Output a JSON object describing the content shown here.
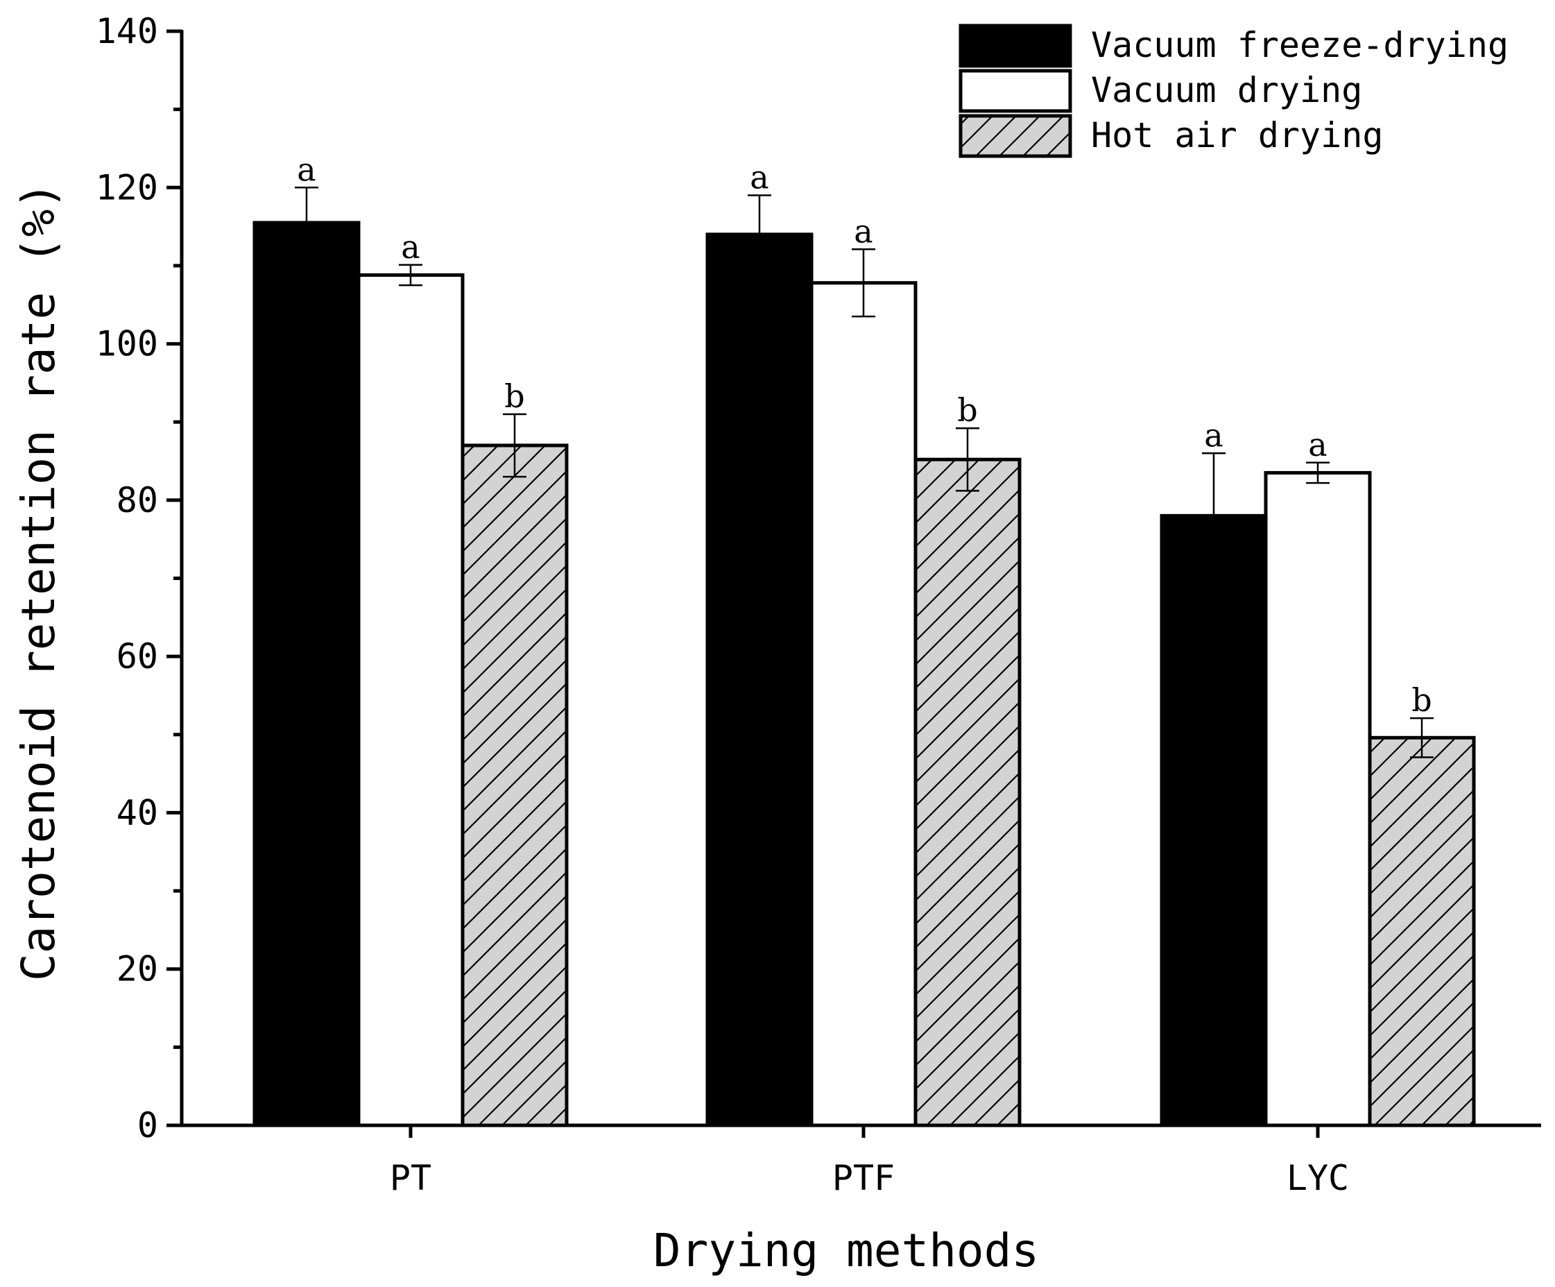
{
  "chart_data": {
    "type": "bar",
    "title": "",
    "xlabel": "Drying methods",
    "ylabel": "Carotenoid retention rate (%)",
    "ylim": [
      0,
      140
    ],
    "yticks": [
      0,
      20,
      40,
      60,
      80,
      100,
      120,
      140
    ],
    "grid": false,
    "legend_position": "top-right",
    "categories": [
      "PT",
      "PTF",
      "LYC"
    ],
    "series": [
      {
        "name": "Vacuum freeze-drying",
        "fill": "#000000",
        "pattern": "solid",
        "values": [
          115.5,
          114,
          78
        ],
        "errors": [
          4.5,
          5,
          8
        ],
        "labels": [
          "a",
          "a",
          "a"
        ]
      },
      {
        "name": "Vacuum drying",
        "fill": "#ffffff",
        "pattern": "none",
        "values": [
          108.8,
          107.8,
          83.5
        ],
        "errors": [
          1.3,
          4.3,
          1.3
        ],
        "labels": [
          "a",
          "a",
          "a"
        ]
      },
      {
        "name": "Hot air drying",
        "fill": "#d3d3d3",
        "pattern": "hatch",
        "values": [
          87,
          85.2,
          49.6
        ],
        "errors": [
          4,
          4,
          2.5
        ],
        "labels": [
          "b",
          "b",
          "b"
        ]
      }
    ]
  }
}
